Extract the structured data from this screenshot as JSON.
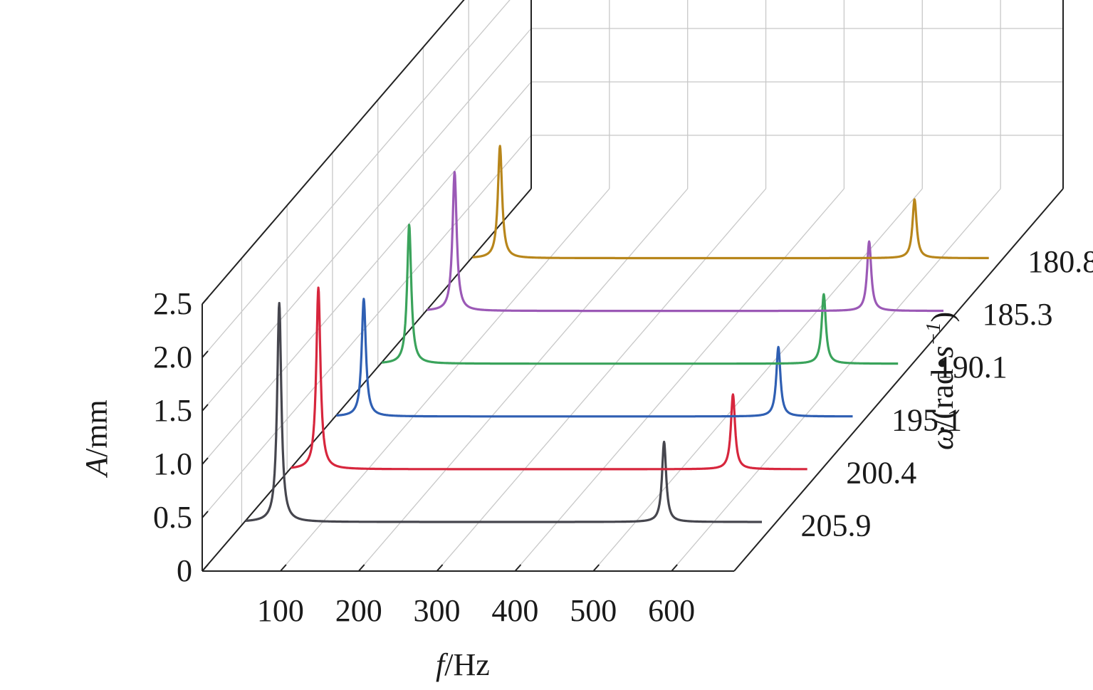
{
  "chart_data": {
    "type": "line",
    "projection": "3d-waterfall",
    "x": [
      0,
      35,
      40,
      45,
      48,
      50,
      55,
      60,
      100,
      200,
      300,
      400,
      500,
      540,
      550,
      560,
      565,
      570,
      575,
      580,
      590,
      620,
      660
    ],
    "xlabel": {
      "var": "f",
      "unit": "/Hz"
    },
    "xticks": [
      100,
      200,
      300,
      400,
      500,
      600
    ],
    "xlim": [
      0,
      680
    ],
    "ylabel": {
      "var": "A",
      "unit": "/mm"
    },
    "yticks": [
      "0",
      "0.5",
      "1.0",
      "1.5",
      "2.0",
      "2.5"
    ],
    "ylim": [
      0,
      2.5
    ],
    "zlabel": {
      "var": "ω",
      "pre": "/(rad",
      "dot": "•",
      "s": "s",
      "exp": "−1",
      "post": ")"
    },
    "grid": true,
    "series": [
      {
        "name": "180.8",
        "color": "#b8861b",
        "peaks": [
          [
            40,
            1.05
          ],
          [
            570,
            0.55
          ]
        ]
      },
      {
        "name": "185.3",
        "color": "#9b59b6",
        "peaks": [
          [
            40,
            1.3
          ],
          [
            570,
            0.65
          ]
        ]
      },
      {
        "name": "190.1",
        "color": "#3aa35b",
        "peaks": [
          [
            40,
            1.3
          ],
          [
            570,
            0.65
          ]
        ]
      },
      {
        "name": "195.1",
        "color": "#2f5fb3",
        "peaks": [
          [
            40,
            1.1
          ],
          [
            570,
            0.65
          ]
        ]
      },
      {
        "name": "200.4",
        "color": "#d7263d",
        "peaks": [
          [
            40,
            1.7
          ],
          [
            570,
            0.7
          ]
        ]
      },
      {
        "name": "205.9",
        "color": "#46464e",
        "peaks": [
          [
            48,
            2.05
          ],
          [
            540,
            0.75
          ]
        ]
      }
    ]
  }
}
